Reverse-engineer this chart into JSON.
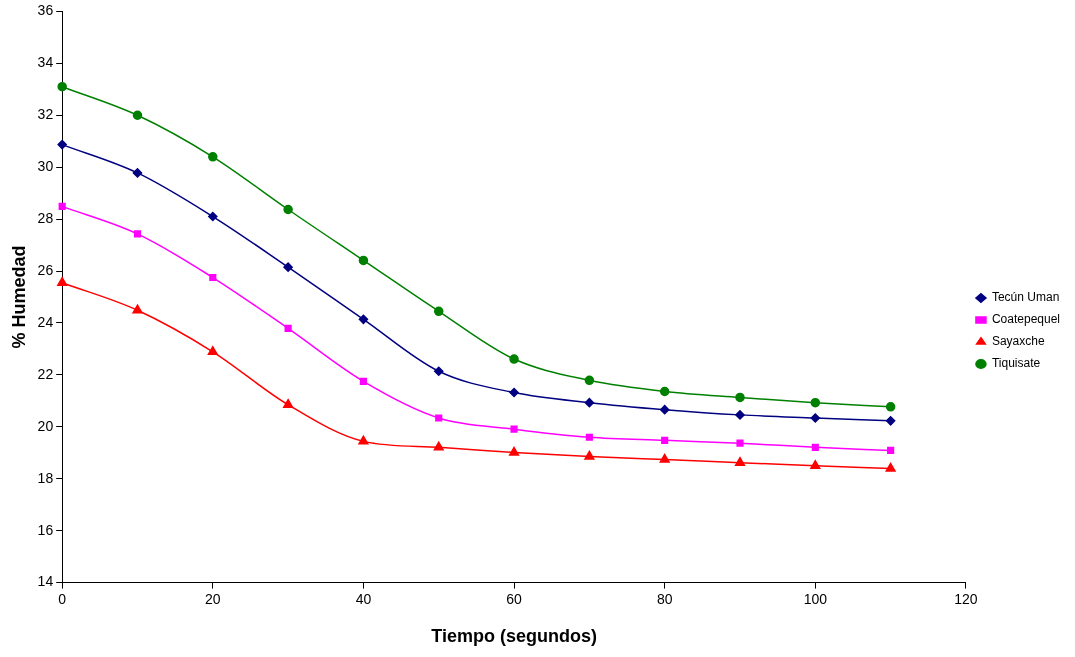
{
  "chart_data": {
    "type": "line",
    "xlabel": "Tiempo (segundos)",
    "ylabel": "% Humedad",
    "x": [
      0,
      10,
      20,
      30,
      40,
      50,
      60,
      70,
      80,
      90,
      100,
      110
    ],
    "xlim": [
      0,
      120
    ],
    "xticks": [
      0,
      20,
      40,
      60,
      80,
      100,
      120
    ],
    "ylim": [
      14,
      36
    ],
    "yticks": [
      14,
      16,
      18,
      20,
      22,
      24,
      26,
      28,
      30,
      32,
      34,
      36
    ],
    "grid": false,
    "legend": "right",
    "series": [
      {
        "name": "Tecún Uman",
        "color": "#000080",
        "marker": "diamond",
        "values": [
          30.87,
          29.78,
          28.1,
          26.15,
          24.14,
          22.14,
          21.32,
          20.93,
          20.66,
          20.46,
          20.34,
          20.23
        ]
      },
      {
        "name": "Coatepequel",
        "color": "#ff00ff",
        "marker": "square",
        "values": [
          28.49,
          27.43,
          25.75,
          23.79,
          21.75,
          20.34,
          19.91,
          19.6,
          19.48,
          19.37,
          19.21,
          19.09
        ]
      },
      {
        "name": "Sayaxche",
        "color": "#ff0000",
        "marker": "triangle",
        "values": [
          25.55,
          24.49,
          22.89,
          20.85,
          19.44,
          19.21,
          19.01,
          18.86,
          18.74,
          18.62,
          18.5,
          18.39
        ]
      },
      {
        "name": "Tiquisate",
        "color": "#008000",
        "marker": "circle",
        "values": [
          33.1,
          32.0,
          30.4,
          28.37,
          26.41,
          24.45,
          22.61,
          21.79,
          21.36,
          21.13,
          20.93,
          20.77
        ]
      }
    ]
  }
}
